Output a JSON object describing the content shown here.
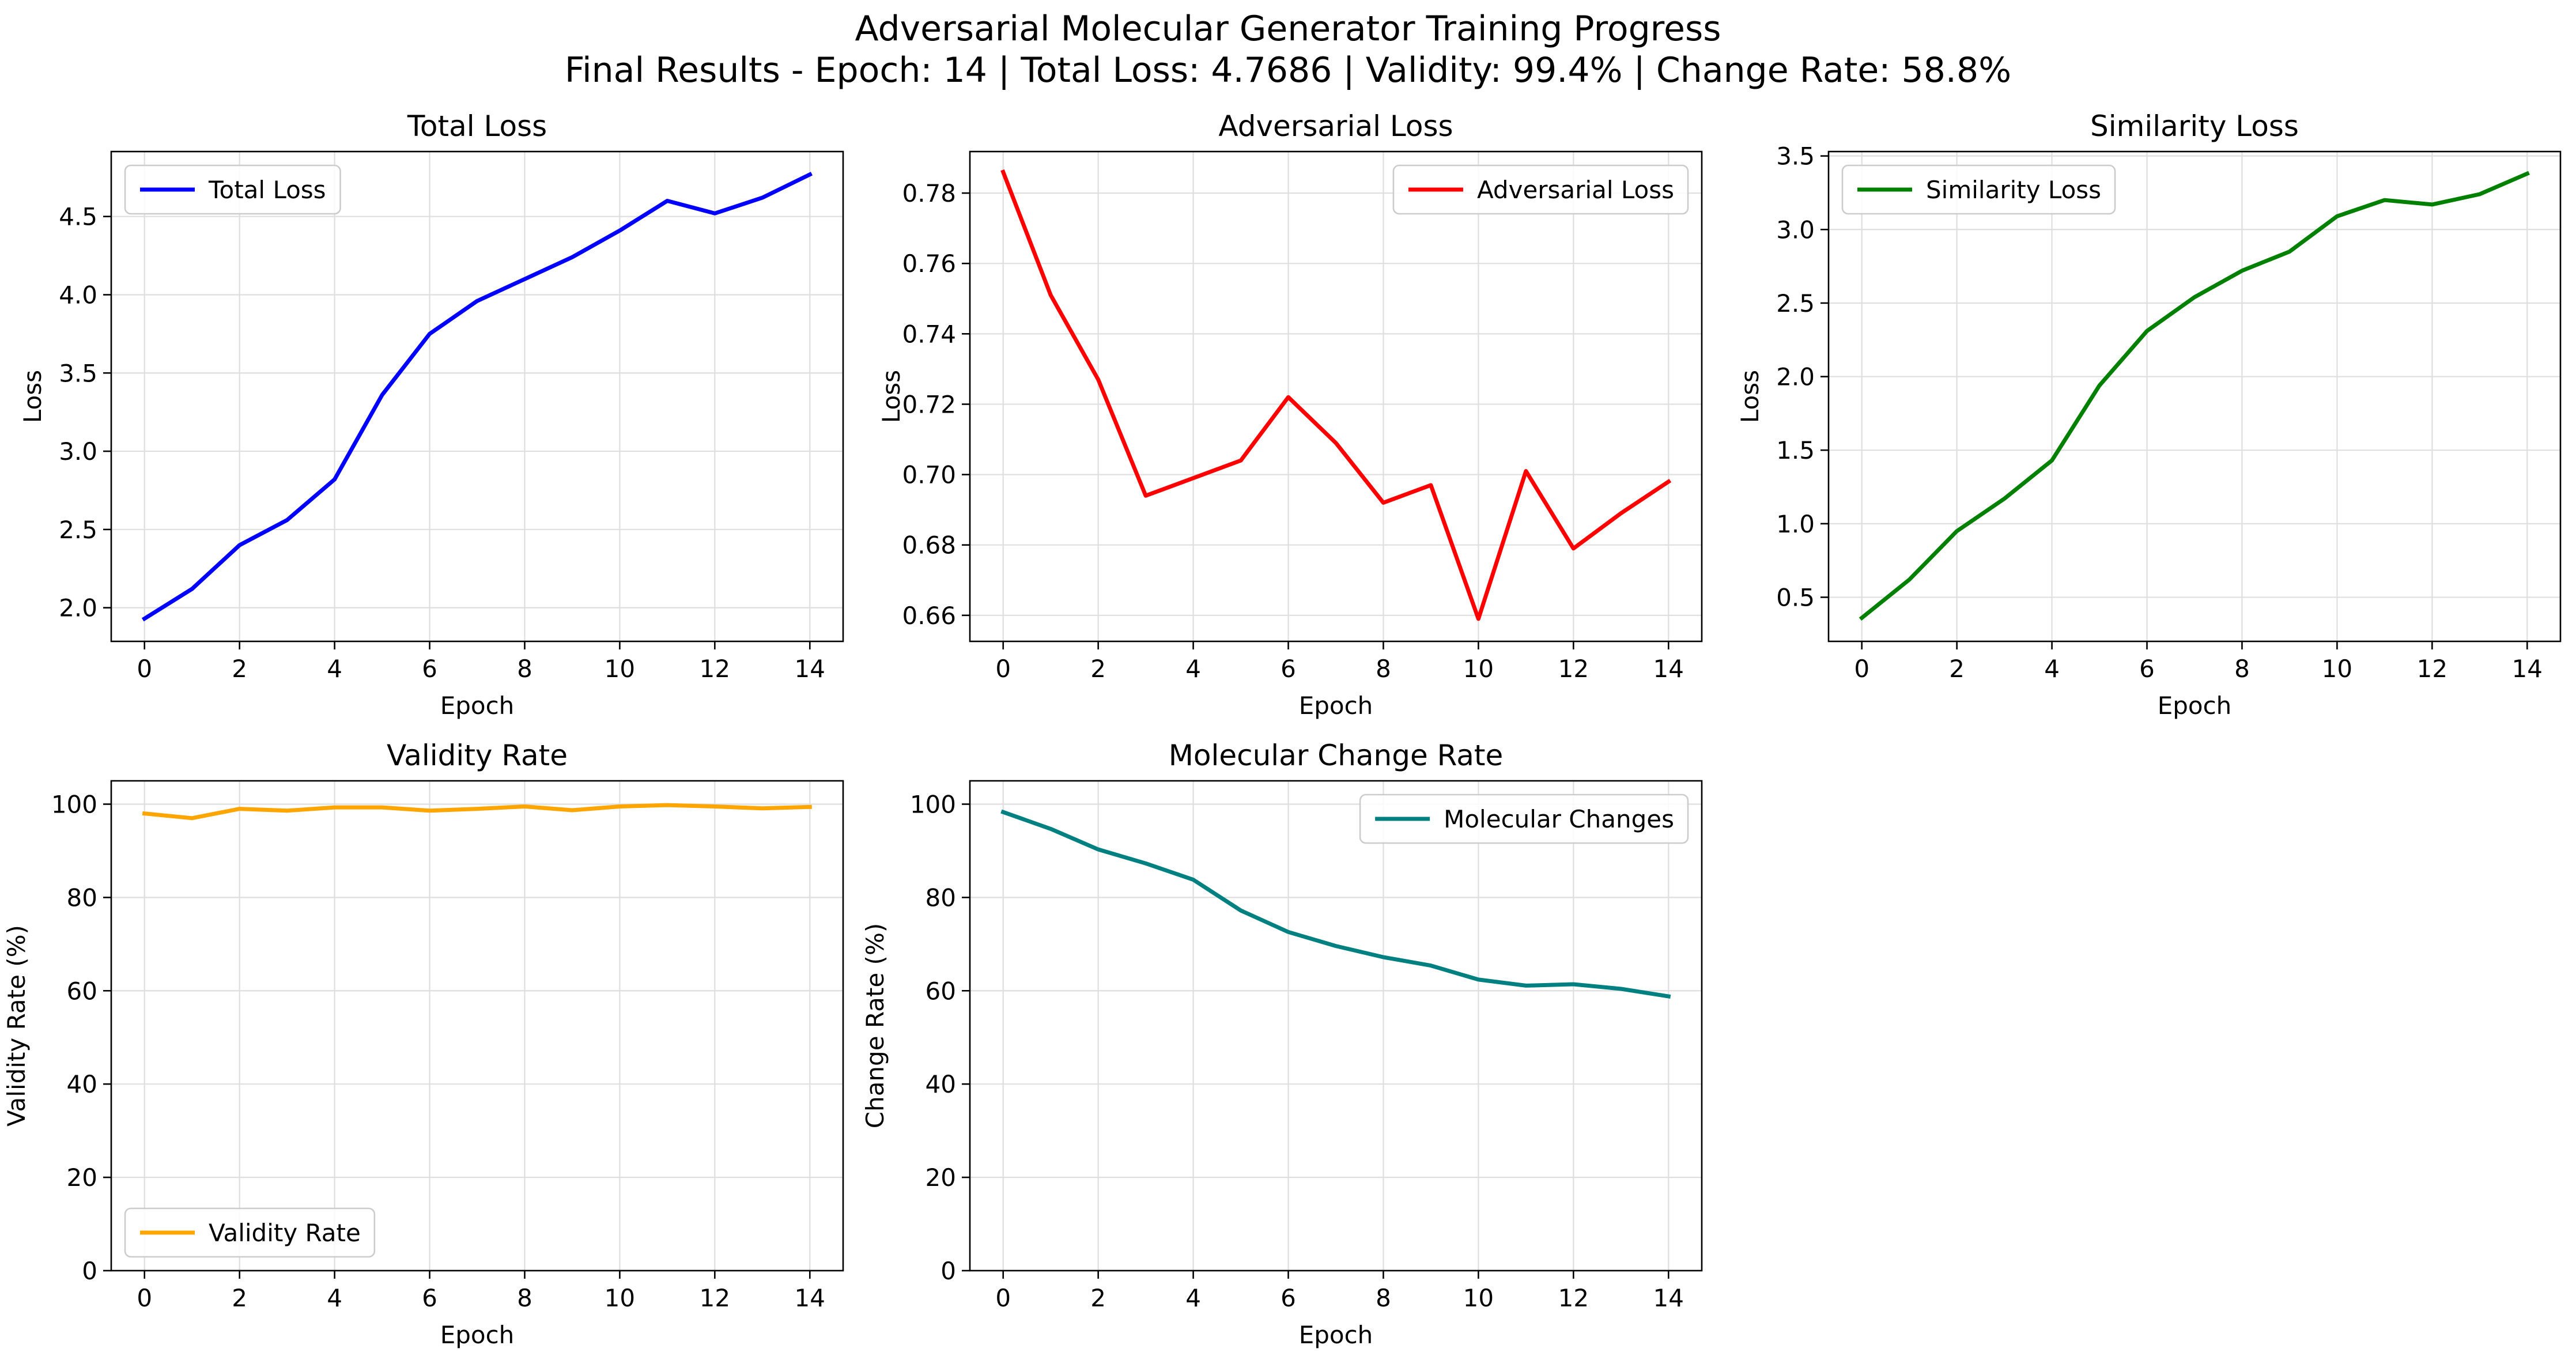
{
  "figure": {
    "title_line1": "Adversarial Molecular Generator Training Progress",
    "title_line2": "Final Results - Epoch: 14 | Total Loss: 4.7686 | Validity: 99.4% | Change Rate: 58.8%"
  },
  "chart_data": [
    {
      "type": "line",
      "title": "Total Loss",
      "xlabel": "Epoch",
      "ylabel": "Loss",
      "xlim": [
        -0.7,
        14.7
      ],
      "ylim": [
        1.785,
        4.915
      ],
      "xticks": [
        0,
        2,
        4,
        6,
        8,
        10,
        12,
        14
      ],
      "yticks": [
        2.0,
        2.5,
        3.0,
        3.5,
        4.0,
        4.5
      ],
      "ytick_decimals": 1,
      "grid": true,
      "legend_position": "upper-left",
      "series": [
        {
          "name": "Total Loss",
          "color": "#0000ff",
          "x": [
            0,
            1,
            2,
            3,
            4,
            5,
            6,
            7,
            8,
            9,
            10,
            11,
            12,
            13,
            14
          ],
          "y": [
            1.93,
            2.12,
            2.4,
            2.56,
            2.82,
            3.36,
            3.75,
            3.96,
            4.1,
            4.24,
            4.41,
            4.6,
            4.52,
            4.62,
            4.7686
          ]
        }
      ]
    },
    {
      "type": "line",
      "title": "Adversarial Loss",
      "xlabel": "Epoch",
      "ylabel": "Loss",
      "xlim": [
        -0.7,
        14.7
      ],
      "ylim": [
        0.6526,
        0.7918
      ],
      "xticks": [
        0,
        2,
        4,
        6,
        8,
        10,
        12,
        14
      ],
      "yticks": [
        0.66,
        0.68,
        0.7,
        0.72,
        0.74,
        0.76,
        0.78
      ],
      "ytick_decimals": 2,
      "grid": true,
      "legend_position": "upper-right",
      "series": [
        {
          "name": "Adversarial Loss",
          "color": "#ff0000",
          "x": [
            0,
            1,
            2,
            3,
            4,
            5,
            6,
            7,
            8,
            9,
            10,
            11,
            12,
            13,
            14
          ],
          "y": [
            0.786,
            0.751,
            0.727,
            0.694,
            0.699,
            0.704,
            0.722,
            0.709,
            0.692,
            0.697,
            0.659,
            0.701,
            0.679,
            0.689,
            0.698
          ]
        }
      ]
    },
    {
      "type": "line",
      "title": "Similarity Loss",
      "xlabel": "Epoch",
      "ylabel": "Loss",
      "xlim": [
        -0.7,
        14.7
      ],
      "ylim": [
        0.2,
        3.53
      ],
      "xticks": [
        0,
        2,
        4,
        6,
        8,
        10,
        12,
        14
      ],
      "yticks": [
        0.5,
        1.0,
        1.5,
        2.0,
        2.5,
        3.0,
        3.5
      ],
      "ytick_decimals": 1,
      "grid": true,
      "legend_position": "upper-left",
      "series": [
        {
          "name": "Similarity Loss",
          "color": "#008000",
          "x": [
            0,
            1,
            2,
            3,
            4,
            5,
            6,
            7,
            8,
            9,
            10,
            11,
            12,
            13,
            14
          ],
          "y": [
            0.36,
            0.62,
            0.95,
            1.17,
            1.43,
            1.94,
            2.31,
            2.54,
            2.72,
            2.85,
            3.09,
            3.2,
            3.17,
            3.24,
            3.38
          ]
        }
      ]
    },
    {
      "type": "line",
      "title": "Validity Rate",
      "xlabel": "Epoch",
      "ylabel": "Validity Rate (%)",
      "xlim": [
        -0.7,
        14.7
      ],
      "ylim": [
        0,
        105
      ],
      "xticks": [
        0,
        2,
        4,
        6,
        8,
        10,
        12,
        14
      ],
      "yticks": [
        0,
        20,
        40,
        60,
        80,
        100
      ],
      "ytick_decimals": 0,
      "grid": true,
      "legend_position": "lower-left",
      "series": [
        {
          "name": "Validity Rate",
          "color": "#ffa500",
          "x": [
            0,
            1,
            2,
            3,
            4,
            5,
            6,
            7,
            8,
            9,
            10,
            11,
            12,
            13,
            14
          ],
          "y": [
            98.0,
            97.0,
            99.0,
            98.6,
            99.3,
            99.3,
            98.6,
            99.0,
            99.5,
            98.7,
            99.5,
            99.8,
            99.5,
            99.1,
            99.4
          ]
        }
      ]
    },
    {
      "type": "line",
      "title": "Molecular Change Rate",
      "xlabel": "Epoch",
      "ylabel": "Change Rate (%)",
      "xlim": [
        -0.7,
        14.7
      ],
      "ylim": [
        0,
        105
      ],
      "xticks": [
        0,
        2,
        4,
        6,
        8,
        10,
        12,
        14
      ],
      "yticks": [
        0,
        20,
        40,
        60,
        80,
        100
      ],
      "ytick_decimals": 0,
      "grid": true,
      "legend_position": "upper-right",
      "series": [
        {
          "name": "Molecular Changes",
          "color": "#008080",
          "x": [
            0,
            1,
            2,
            3,
            4,
            5,
            6,
            7,
            8,
            9,
            10,
            11,
            12,
            13,
            14
          ],
          "y": [
            98.3,
            94.7,
            90.3,
            87.3,
            83.8,
            77.2,
            72.6,
            69.6,
            67.2,
            65.4,
            62.4,
            61.1,
            61.4,
            60.4,
            58.8
          ]
        }
      ]
    }
  ]
}
